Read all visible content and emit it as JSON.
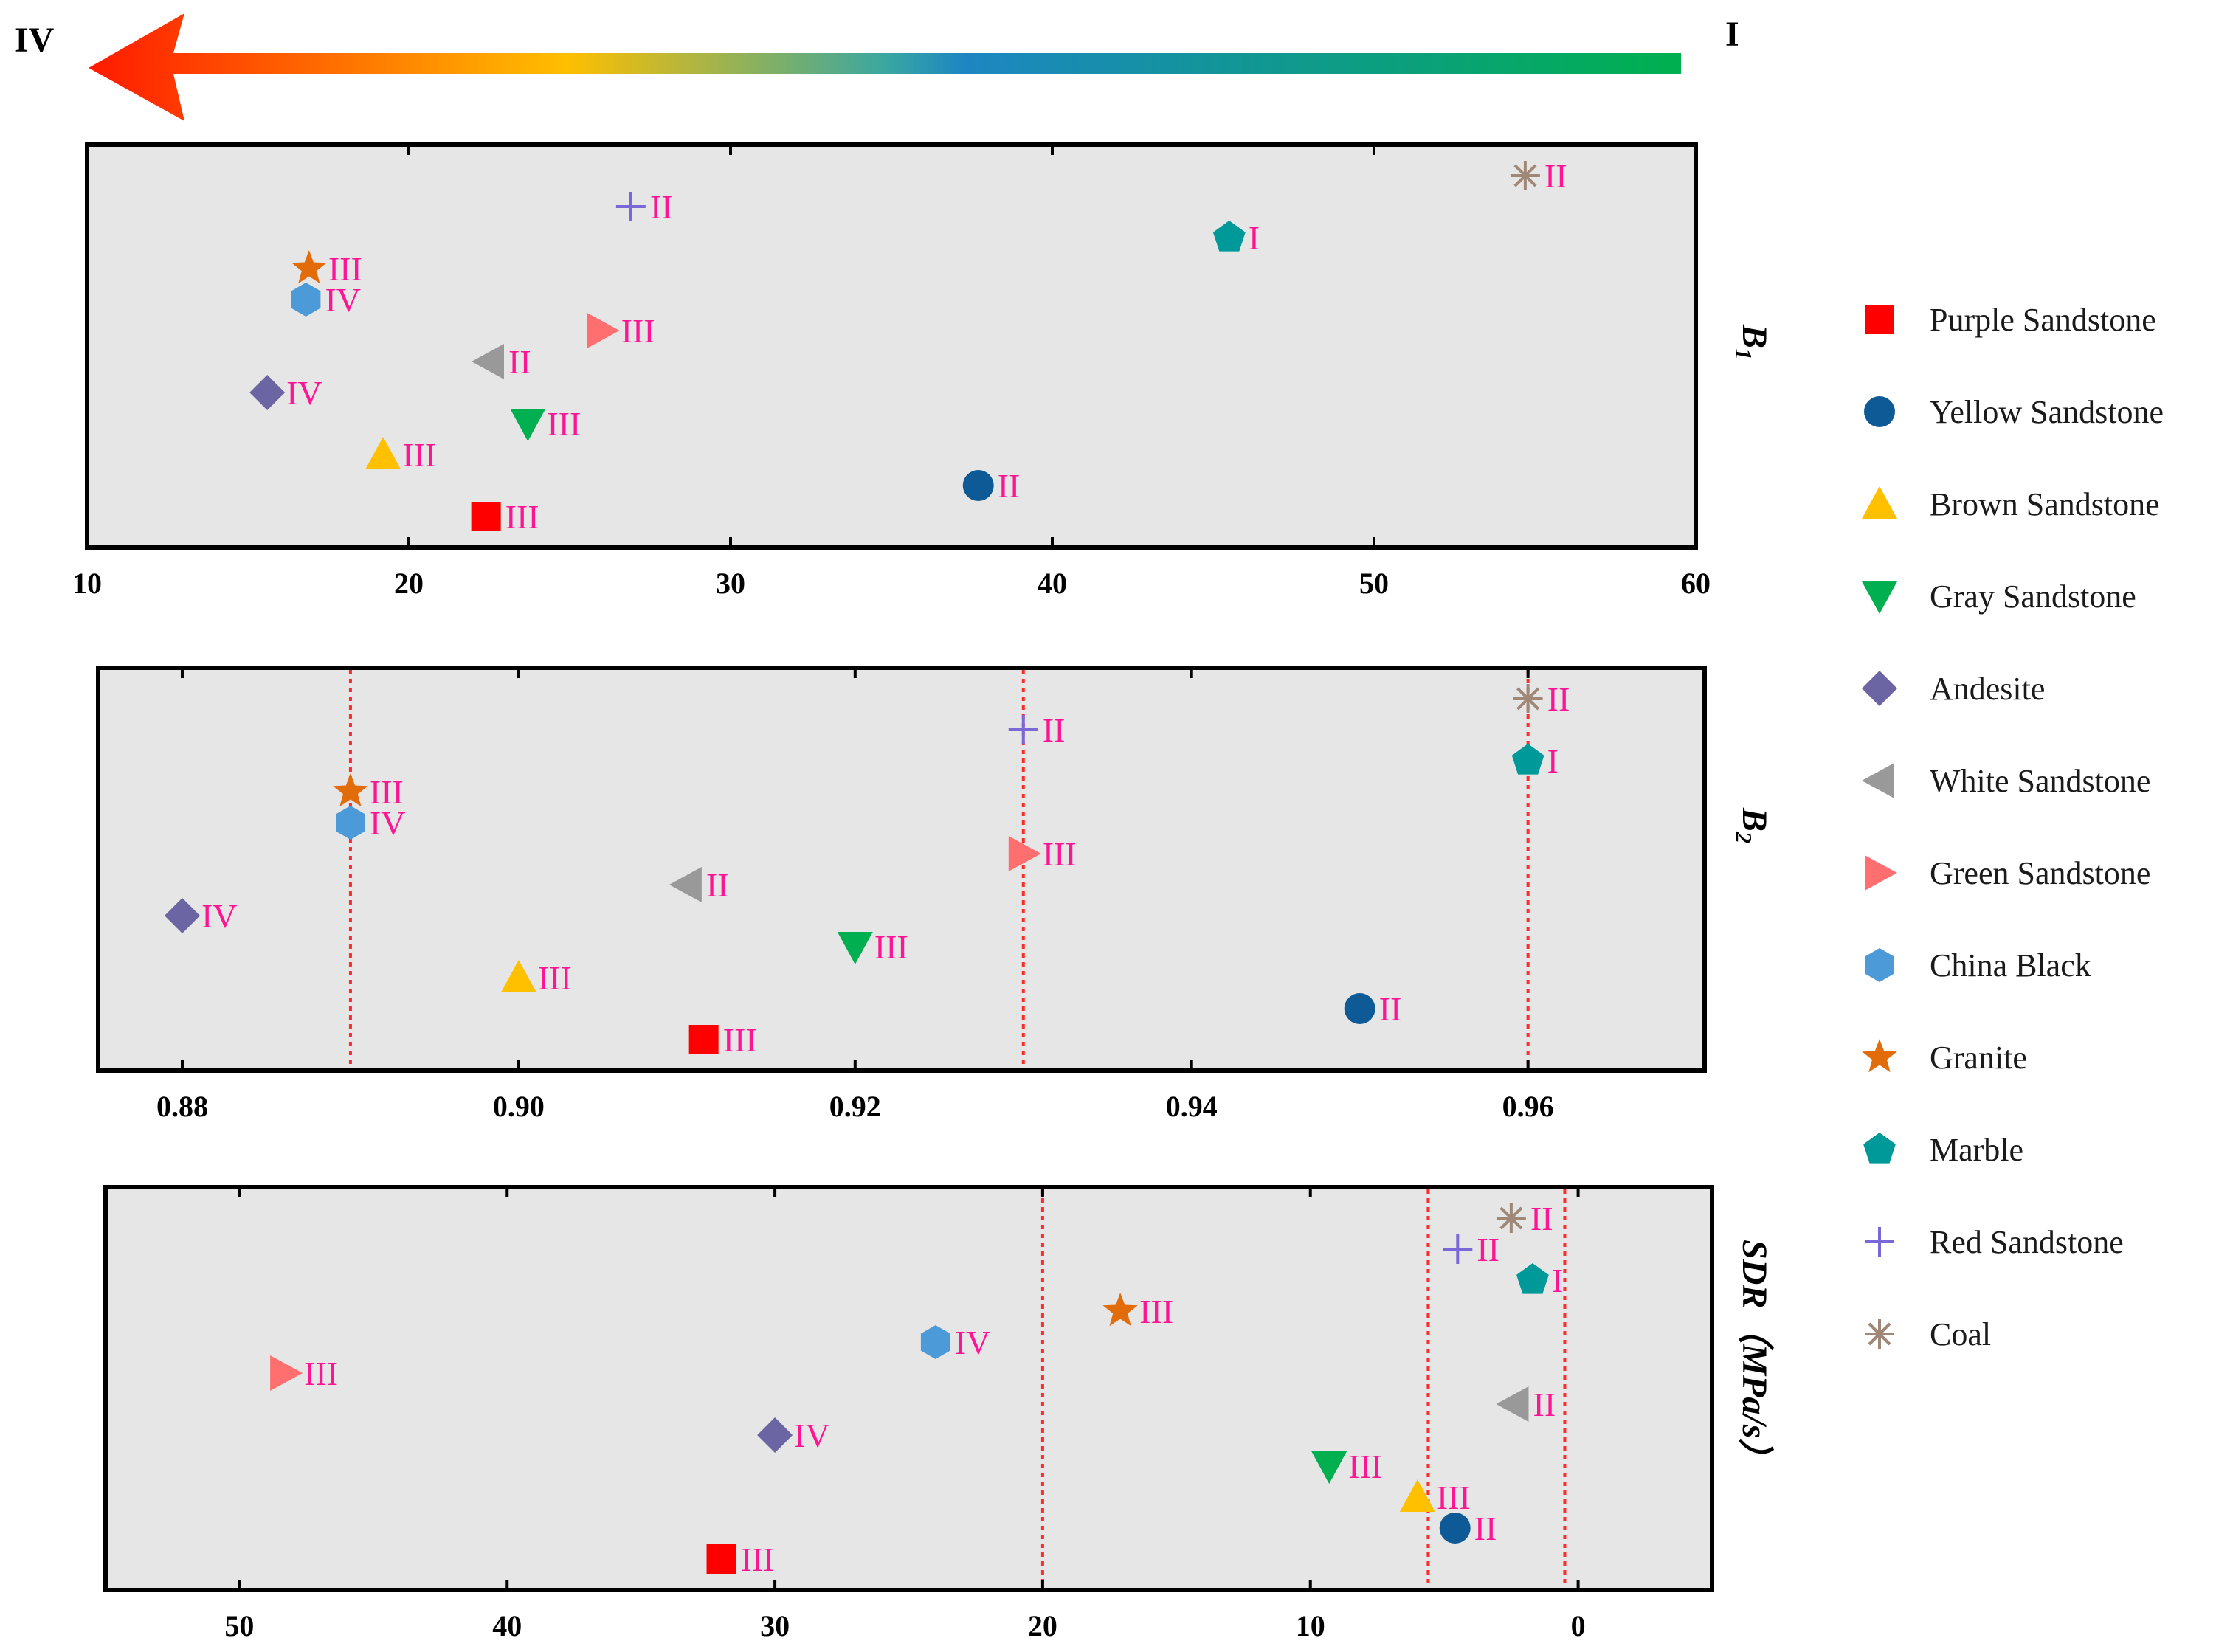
{
  "chart_data": {
    "type": "scatter",
    "arrow": {
      "left_label": "IV",
      "right_label": "I"
    },
    "series": [
      {
        "name": "Purple Sandstone",
        "marker": "square",
        "color": "#ff0000"
      },
      {
        "name": "Yellow Sandstone",
        "marker": "circle",
        "color": "#0e5a96"
      },
      {
        "name": "Brown Sandstone",
        "marker": "triangle-up",
        "color": "#ffc000"
      },
      {
        "name": "Gray Sandstone",
        "marker": "triangle-down",
        "color": "#00b050"
      },
      {
        "name": "Andesite",
        "marker": "diamond",
        "color": "#6b66a3"
      },
      {
        "name": "White Sandstone",
        "marker": "triangle-left",
        "color": "#999999"
      },
      {
        "name": "Green Sandstone",
        "marker": "triangle-right",
        "color": "#ff6f6f"
      },
      {
        "name": "China Black",
        "marker": "hexagon",
        "color": "#4c9ad8"
      },
      {
        "name": "Granite",
        "marker": "star",
        "color": "#e36c0a"
      },
      {
        "name": "Marble",
        "marker": "pentagon",
        "color": "#009999"
      },
      {
        "name": "Red Sandstone",
        "marker": "plus",
        "color": "#7b68d8"
      },
      {
        "name": "Coal",
        "marker": "asterisk",
        "color": "#a08878"
      }
    ],
    "panels": [
      {
        "ylabel": "B1",
        "xlim": [
          10,
          60
        ],
        "reversed": false,
        "xticks": [
          "10",
          "20",
          "30",
          "40",
          "50",
          "60"
        ],
        "xtick_values": [
          10,
          20,
          30,
          40,
          50,
          60
        ],
        "reference_lines": [],
        "points": [
          {
            "series": "Purple Sandstone",
            "x": 22.4,
            "grade": "III"
          },
          {
            "series": "Yellow Sandstone",
            "x": 37.7,
            "grade": "II"
          },
          {
            "series": "Brown Sandstone",
            "x": 19.2,
            "grade": "III"
          },
          {
            "series": "Gray Sandstone",
            "x": 23.7,
            "grade": "III"
          },
          {
            "series": "Andesite",
            "x": 15.6,
            "grade": "IV"
          },
          {
            "series": "White Sandstone",
            "x": 22.5,
            "grade": "II"
          },
          {
            "series": "Green Sandstone",
            "x": 26.0,
            "grade": "III"
          },
          {
            "series": "China Black",
            "x": 16.8,
            "grade": "IV"
          },
          {
            "series": "Granite",
            "x": 16.9,
            "grade": "III"
          },
          {
            "series": "Marble",
            "x": 45.5,
            "grade": "I"
          },
          {
            "series": "Red Sandstone",
            "x": 26.9,
            "grade": "II"
          },
          {
            "series": "Coal",
            "x": 54.7,
            "grade": "II"
          }
        ]
      },
      {
        "ylabel": "B2",
        "xlim": [
          0.875,
          0.9705
        ],
        "reversed": false,
        "xticks": [
          "0.88",
          "0.90",
          "0.92",
          "0.94",
          "0.96"
        ],
        "xtick_values": [
          0.88,
          0.9,
          0.92,
          0.94,
          0.96
        ],
        "reference_lines": [
          0.89,
          0.93,
          0.96
        ],
        "points": [
          {
            "series": "Purple Sandstone",
            "x": 0.911,
            "grade": "III"
          },
          {
            "series": "Yellow Sandstone",
            "x": 0.95,
            "grade": "II"
          },
          {
            "series": "Brown Sandstone",
            "x": 0.9,
            "grade": "III"
          },
          {
            "series": "Gray Sandstone",
            "x": 0.92,
            "grade": "III"
          },
          {
            "series": "Andesite",
            "x": 0.88,
            "grade": "IV"
          },
          {
            "series": "White Sandstone",
            "x": 0.91,
            "grade": "II"
          },
          {
            "series": "Green Sandstone",
            "x": 0.93,
            "grade": "III"
          },
          {
            "series": "China Black",
            "x": 0.89,
            "grade": "IV"
          },
          {
            "series": "Granite",
            "x": 0.89,
            "grade": "III"
          },
          {
            "series": "Marble",
            "x": 0.96,
            "grade": "I"
          },
          {
            "series": "Red Sandstone",
            "x": 0.93,
            "grade": "II"
          },
          {
            "series": "Coal",
            "x": 0.96,
            "grade": "II"
          }
        ]
      },
      {
        "ylabel": "SDR（MPa/s）",
        "xlim": [
          55,
          -5
        ],
        "reversed": true,
        "xticks": [
          "50",
          "40",
          "30",
          "20",
          "10",
          "0"
        ],
        "xtick_values": [
          50,
          40,
          30,
          20,
          10,
          0
        ],
        "reference_lines": [
          20,
          5.6,
          0.5
        ],
        "points": [
          {
            "series": "Purple Sandstone",
            "x": 32.0,
            "grade": "III"
          },
          {
            "series": "Yellow Sandstone",
            "x": 4.6,
            "grade": "II"
          },
          {
            "series": "Brown Sandstone",
            "x": 6.0,
            "grade": "III"
          },
          {
            "series": "Gray Sandstone",
            "x": 9.3,
            "grade": "III"
          },
          {
            "series": "Andesite",
            "x": 30.0,
            "grade": "IV"
          },
          {
            "series": "White Sandstone",
            "x": 2.4,
            "grade": "II"
          },
          {
            "series": "Green Sandstone",
            "x": 48.3,
            "grade": "III"
          },
          {
            "series": "China Black",
            "x": 24.0,
            "grade": "IV"
          },
          {
            "series": "Granite",
            "x": 17.1,
            "grade": "III"
          },
          {
            "series": "Marble",
            "x": 1.7,
            "grade": "I"
          },
          {
            "series": "Red Sandstone",
            "x": 4.5,
            "grade": "II"
          },
          {
            "series": "Coal",
            "x": 2.5,
            "grade": "II"
          }
        ]
      }
    ]
  }
}
